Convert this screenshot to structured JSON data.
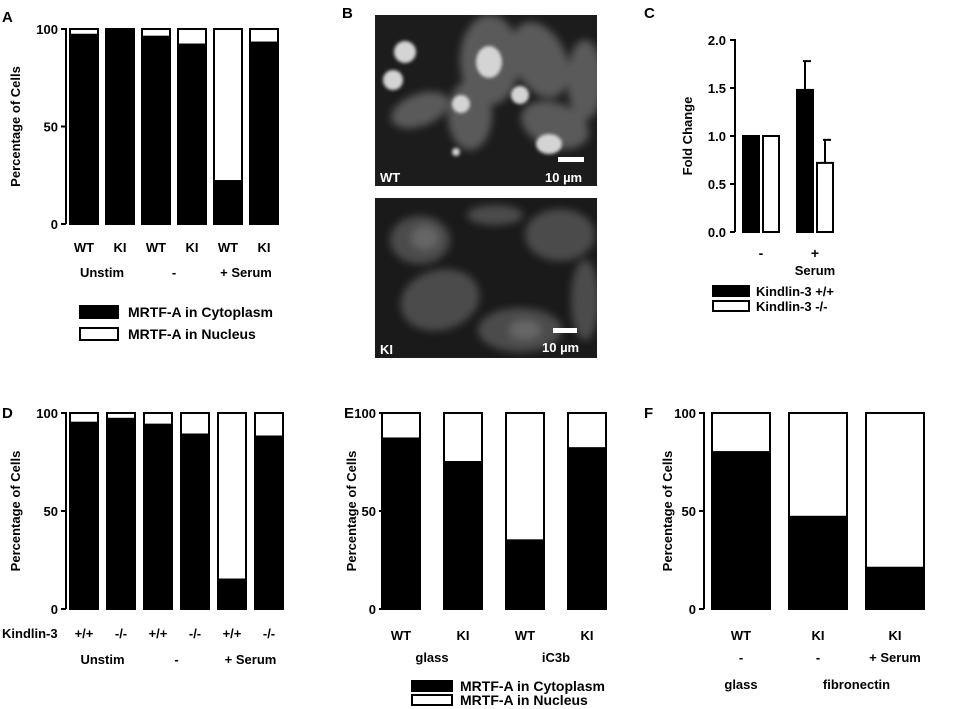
{
  "panels": {
    "A": "A",
    "B": "B",
    "C": "C",
    "D": "D",
    "E": "E",
    "F": "F"
  },
  "legend_AE": {
    "cytoplasm": "MRTF-A in Cytoplasm",
    "nucleus": "MRTF-A in Nucleus"
  },
  "legend_C": {
    "wt": "Kindlin-3 +/+",
    "ko": "Kindlin-3 -/-"
  },
  "micrographs": [
    {
      "label": "WT",
      "scale": "10 µm"
    },
    {
      "label": "KI",
      "scale": "10 µm"
    }
  ],
  "colors": {
    "cytoplasm": "#000000",
    "nucleus": "#ffffff",
    "micrograph_bg": "#2a2a2a",
    "cell": "#6e6e6e",
    "nucleus_bright": "#d8d8d8"
  },
  "chart_data": [
    {
      "id": "A",
      "type": "bar",
      "stacked": true,
      "ylabel": "Percentage of Cells",
      "ylim": [
        0,
        100
      ],
      "yticks": [
        0,
        50,
        100
      ],
      "categories": [
        "WT",
        "KI",
        "WT",
        "KI",
        "WT",
        "KI"
      ],
      "groups": [
        {
          "label": "Unstim",
          "span": [
            0,
            1
          ]
        },
        {
          "label": "-",
          "span": [
            2,
            3
          ]
        },
        {
          "label": "+ Serum",
          "span": [
            4,
            5
          ]
        }
      ],
      "series": [
        {
          "name": "MRTF-A in Cytoplasm",
          "values": [
            97,
            99,
            96,
            92,
            22,
            93
          ]
        },
        {
          "name": "MRTF-A in Nucleus",
          "values": [
            3,
            1,
            4,
            8,
            78,
            7
          ]
        }
      ]
    },
    {
      "id": "C",
      "type": "bar",
      "ylabel": "Fold Change",
      "ylim": [
        0,
        2.0
      ],
      "yticks": [
        "0.0",
        "0.5",
        "1.0",
        "1.5",
        "2.0"
      ],
      "categories": [
        "-",
        "+"
      ],
      "xlabel": "Serum",
      "series": [
        {
          "name": "Kindlin-3 +/+",
          "values": [
            1.0,
            1.48
          ],
          "errors": [
            0,
            0.3
          ]
        },
        {
          "name": "Kindlin-3 -/-",
          "values": [
            1.0,
            0.72
          ],
          "errors": [
            0,
            0.24
          ]
        }
      ]
    },
    {
      "id": "D",
      "type": "bar",
      "stacked": true,
      "ylabel": "Percentage of Cells",
      "ylim": [
        0,
        100
      ],
      "yticks": [
        0,
        50,
        100
      ],
      "row_label": "Kindlin-3",
      "categories": [
        "+/+",
        "-/-",
        "+/+",
        "-/-",
        "+/+",
        "-/-"
      ],
      "groups": [
        {
          "label": "Unstim",
          "span": [
            0,
            1
          ]
        },
        {
          "label": "-",
          "span": [
            2,
            3
          ]
        },
        {
          "label": "+ Serum",
          "span": [
            4,
            5
          ]
        }
      ],
      "series": [
        {
          "name": "MRTF-A in Cytoplasm",
          "values": [
            95,
            97,
            94,
            89,
            15,
            88
          ]
        },
        {
          "name": "MRTF-A in Nucleus",
          "values": [
            5,
            3,
            6,
            11,
            85,
            12
          ]
        }
      ]
    },
    {
      "id": "E",
      "type": "bar",
      "stacked": true,
      "ylabel": "Percentage of Cells",
      "ylim": [
        0,
        100
      ],
      "yticks": [
        0,
        50,
        100
      ],
      "categories": [
        "WT",
        "KI",
        "WT",
        "KI"
      ],
      "groups": [
        {
          "label": "glass",
          "span": [
            0,
            1
          ]
        },
        {
          "label": "iC3b",
          "span": [
            2,
            3
          ]
        }
      ],
      "series": [
        {
          "name": "MRTF-A in Cytoplasm",
          "values": [
            87,
            75,
            35,
            82
          ]
        },
        {
          "name": "MRTF-A in Nucleus",
          "values": [
            13,
            25,
            65,
            18
          ]
        }
      ]
    },
    {
      "id": "F",
      "type": "bar",
      "stacked": true,
      "ylabel": "Percentage of Cells",
      "ylim": [
        0,
        100
      ],
      "yticks": [
        0,
        50,
        100
      ],
      "categories": [
        "WT",
        "KI",
        "KI"
      ],
      "sublabels": [
        "-",
        "-",
        "+ Serum"
      ],
      "groups": [
        {
          "label": "glass",
          "span": [
            0,
            0
          ]
        },
        {
          "label": "fibronectin",
          "span": [
            1,
            2
          ]
        }
      ],
      "series": [
        {
          "name": "MRTF-A in Cytoplasm",
          "values": [
            80,
            47,
            21
          ]
        },
        {
          "name": "MRTF-A in Nucleus",
          "values": [
            20,
            53,
            79
          ]
        }
      ]
    }
  ]
}
